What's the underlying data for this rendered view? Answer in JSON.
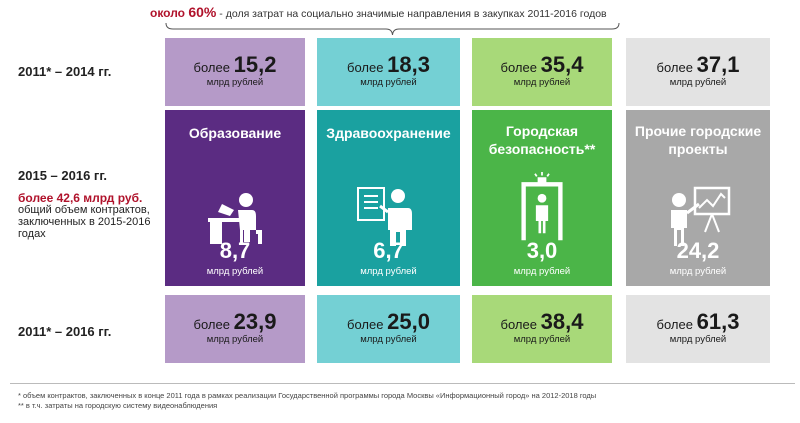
{
  "header": {
    "pct_prefix": "около",
    "pct_value": "60%",
    "text": " - доля затрат на социально значимые направления в закупках 2011-2016 годов"
  },
  "rows": {
    "r1": "2011* – 2014 гг.",
    "r2": "2015 – 2016 гг.",
    "r3": "2011* – 2016 гг."
  },
  "note": {
    "amount": "более 42,6 млрд руб.",
    "text": "общий объем контрактов, заключенных в 2015-2016 годах"
  },
  "unit": "млрд рублей",
  "prefix": "более",
  "columns": [
    {
      "title": "Образование",
      "color": "#5b2c82",
      "light": "#b59ac8",
      "icon": "student-desk-icon",
      "v1": "15,2",
      "v2": "8,7",
      "v3": "23,9"
    },
    {
      "title": "Здравоохранение",
      "color": "#1aa1a0",
      "light": "#74d0d4",
      "icon": "doctor-icon",
      "v1": "18,3",
      "v2": "6,7",
      "v3": "25,0"
    },
    {
      "title": "Городская безопасность**",
      "color": "#4bb548",
      "light": "#a8d979",
      "icon": "metal-detector-icon",
      "v1": "35,4",
      "v2": "3,0",
      "v3": "38,4"
    },
    {
      "title": "Прочие городские проекты",
      "color": "#a8a8a8",
      "light": "#e3e3e3",
      "icon": "presentation-icon",
      "v1": "37,1",
      "v2": "24,2",
      "v3": "61,3"
    }
  ],
  "footer": {
    "line1": "* объем контрактов, заключенных в конце 2011 года в рамках реализации Государственной программы города Москвы «Информационный город» на 2012-2018 годы",
    "line2": "** в т.ч. затраты на городскую систему видеонаблюдения"
  }
}
